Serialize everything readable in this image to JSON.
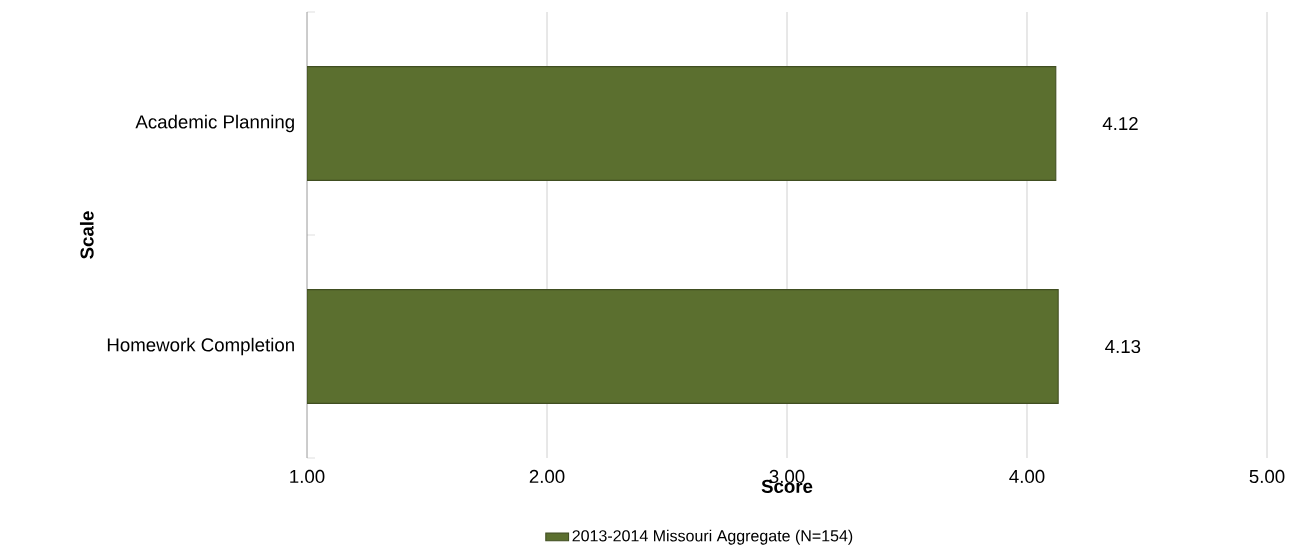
{
  "chart_data": {
    "type": "bar",
    "orientation": "horizontal",
    "xlabel": "Score",
    "ylabel": "Scale",
    "categories": [
      "Academic Planning",
      "Homework Completion"
    ],
    "series": [
      {
        "name": "2013-2014 Missouri Aggregate (N=154)",
        "color": "#5b6f2f",
        "values": [
          4.12,
          4.13
        ],
        "value_labels": [
          "4.12",
          "4.13"
        ]
      }
    ],
    "xlim": [
      1,
      5
    ],
    "xticks": [
      {
        "value": 1,
        "label": "1.00"
      },
      {
        "value": 2,
        "label": "2.00"
      },
      {
        "value": 3,
        "label": "3.00"
      },
      {
        "value": 4,
        "label": "4.00"
      },
      {
        "value": 5,
        "label": "5.00"
      }
    ],
    "grid": "x",
    "legend": "bottom"
  }
}
